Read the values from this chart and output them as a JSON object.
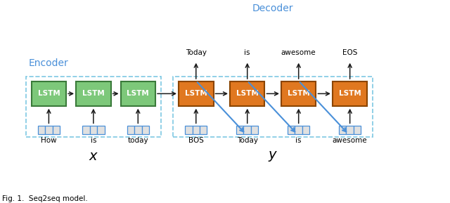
{
  "encoder_lstm_color": "#7DC87A",
  "decoder_lstm_color": "#E07820",
  "encoder_lstm_border": "#3A7A3A",
  "decoder_lstm_border": "#8B4500",
  "dashed_box_color": "#7EC8E3",
  "encoder_label": "Encoder",
  "decoder_label": "Decoder",
  "encoder_words": [
    "How",
    "is",
    "today"
  ],
  "decoder_words": [
    "BOS",
    "Today",
    "is",
    "awesome"
  ],
  "decoder_outputs": [
    "Today",
    "is",
    "awesome",
    "EOS"
  ],
  "x_label": "$x$",
  "y_label": "$y$",
  "caption": "Fig. 1.  Seq2seq model.",
  "blue_arrow_color": "#4A90D9",
  "black_arrow_color": "#1a1a1a",
  "label_color": "#4A90D9",
  "embed_fill": "#E0E0E0",
  "embed_border": "#4A90D9"
}
